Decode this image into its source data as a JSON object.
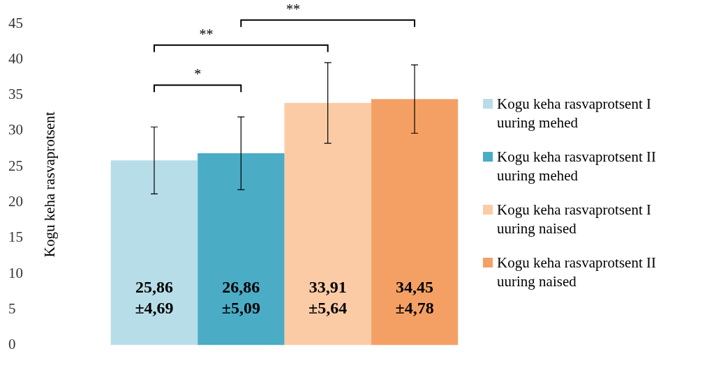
{
  "chart_data": {
    "type": "bar",
    "categories": [
      null
    ],
    "ylabel": "Kogu keha rasvaprotsent",
    "ylim": [
      0,
      45
    ],
    "yticks": [
      0,
      5,
      10,
      15,
      20,
      25,
      30,
      35,
      40,
      45
    ],
    "grid": false,
    "legend": "right",
    "series": [
      {
        "name": "Kogu keha rasvaprotsent I uuring mehed",
        "color": "#b7dde8",
        "values": [
          25.86
        ],
        "errors": [
          4.69
        ],
        "value_labels": [
          "25,86 ±4,69"
        ]
      },
      {
        "name": "Kogu keha rasvaprotsent II uuring mehed",
        "color": "#4bacc6",
        "values": [
          26.86
        ],
        "errors": [
          5.09
        ],
        "value_labels": [
          "26,86 ±5,09"
        ]
      },
      {
        "name": "Kogu keha rasvaprotsent I uuring naised",
        "color": "#fbcba6",
        "values": [
          33.91
        ],
        "errors": [
          5.64
        ],
        "value_labels": [
          "33,91 ±5,64"
        ]
      },
      {
        "name": "Kogu keha rasvaprotsent II uuring naised",
        "color": "#f4a064",
        "values": [
          34.45
        ],
        "errors": [
          4.78
        ],
        "value_labels": [
          "34,45 ±4,78"
        ]
      }
    ],
    "annotations": [
      "*",
      "**",
      "**"
    ]
  }
}
